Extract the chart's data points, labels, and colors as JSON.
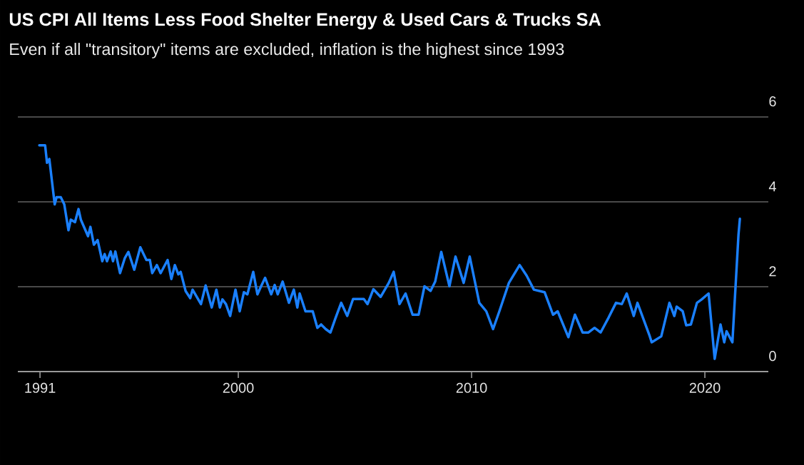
{
  "chart_data": {
    "type": "line",
    "title": "US CPI All Items Less Food Shelter Energy & Used Cars & Trucks SA",
    "subtitle": "Even if all \"transitory\" items are excluded, inflation is the highest since 1993",
    "x": [
      1991.47,
      1991.72,
      1991.8,
      1991.9,
      1992.13,
      1992.21,
      1992.39,
      1992.54,
      1992.72,
      1992.82,
      1993.0,
      1993.15,
      1993.25,
      1993.56,
      1993.66,
      1993.81,
      1993.97,
      1994.17,
      1994.27,
      1994.37,
      1994.53,
      1994.63,
      1994.73,
      1994.93,
      1995.14,
      1995.29,
      1995.54,
      1995.8,
      1996.06,
      1996.21,
      1996.31,
      1996.51,
      1996.67,
      1996.97,
      1997.13,
      1997.28,
      1997.43,
      1997.53,
      1997.74,
      1997.94,
      1998.04,
      1998.4,
      1998.6,
      1998.86,
      1999.06,
      1999.21,
      1999.32,
      1999.47,
      1999.65,
      1999.88,
      2000.06,
      2000.24,
      2000.39,
      2000.64,
      2000.82,
      2000.95,
      2001.15,
      2001.41,
      2001.56,
      2001.69,
      2001.9,
      2002.17,
      2002.38,
      2002.53,
      2002.63,
      2002.88,
      2003.19,
      2003.39,
      2003.55,
      2003.75,
      2003.95,
      2004.16,
      2004.41,
      2004.67,
      2004.92,
      2005.38,
      2005.54,
      2005.79,
      2006.1,
      2006.45,
      2006.66,
      2006.91,
      2007.17,
      2007.47,
      2007.73,
      2007.98,
      2008.24,
      2008.44,
      2008.7,
      2009.05,
      2009.31,
      2009.66,
      2009.92,
      2010.33,
      2010.63,
      2010.92,
      2011.19,
      2011.6,
      2012.06,
      2012.36,
      2012.67,
      2013.13,
      2013.49,
      2013.69,
      2014.15,
      2014.43,
      2014.76,
      2015.01,
      2015.27,
      2015.53,
      2015.88,
      2016.19,
      2016.44,
      2016.65,
      2016.95,
      2017.11,
      2017.62,
      2017.72,
      2018.13,
      2018.48,
      2018.69,
      2018.79,
      2019.05,
      2019.2,
      2019.4,
      2019.66,
      2019.86,
      2020.16,
      2020.42,
      2020.67,
      2020.83,
      2020.93,
      2021.18,
      2021.44,
      2021.5
    ],
    "series": [
      {
        "color": "#1a80ff",
        "values": [
          5.33,
          5.33,
          4.92,
          5.01,
          3.94,
          4.11,
          4.11,
          3.94,
          3.33,
          3.58,
          3.52,
          3.83,
          3.58,
          3.19,
          3.41,
          2.99,
          3.1,
          2.6,
          2.77,
          2.6,
          2.83,
          2.6,
          2.83,
          2.32,
          2.68,
          2.82,
          2.4,
          2.93,
          2.63,
          2.63,
          2.32,
          2.51,
          2.32,
          2.63,
          2.18,
          2.51,
          2.29,
          2.35,
          1.9,
          1.73,
          1.93,
          1.59,
          2.03,
          1.51,
          1.93,
          1.51,
          1.7,
          1.59,
          1.31,
          1.93,
          1.42,
          1.87,
          1.82,
          2.35,
          1.82,
          1.98,
          2.21,
          1.82,
          2.04,
          1.82,
          2.12,
          1.62,
          1.93,
          1.51,
          1.84,
          1.42,
          1.42,
          1.03,
          1.11,
          1.0,
          0.92,
          1.25,
          1.62,
          1.31,
          1.71,
          1.71,
          1.59,
          1.94,
          1.76,
          2.09,
          2.35,
          1.59,
          1.84,
          1.34,
          1.34,
          2.01,
          1.9,
          2.12,
          2.82,
          2.01,
          2.71,
          2.09,
          2.71,
          1.62,
          1.42,
          1.0,
          1.42,
          2.09,
          2.51,
          2.26,
          1.93,
          1.87,
          1.34,
          1.42,
          0.81,
          1.34,
          0.92,
          0.92,
          1.03,
          0.92,
          1.28,
          1.62,
          1.59,
          1.84,
          1.31,
          1.62,
          0.86,
          0.69,
          0.83,
          1.62,
          1.31,
          1.53,
          1.42,
          1.09,
          1.11,
          1.62,
          1.7,
          1.84,
          0.3,
          1.11,
          0.69,
          0.95,
          0.69,
          3.22,
          3.6
        ]
      }
    ],
    "xlim": [
      1990.55,
      2022.72
    ],
    "ylim": [
      0,
      6
    ],
    "xticks": [
      {
        "value": 1991.5,
        "label": "1991"
      },
      2000,
      2010,
      2020
    ],
    "yticks": [
      0,
      2,
      4,
      6
    ],
    "grid": "y",
    "marker": "none",
    "line_style": "solid"
  }
}
